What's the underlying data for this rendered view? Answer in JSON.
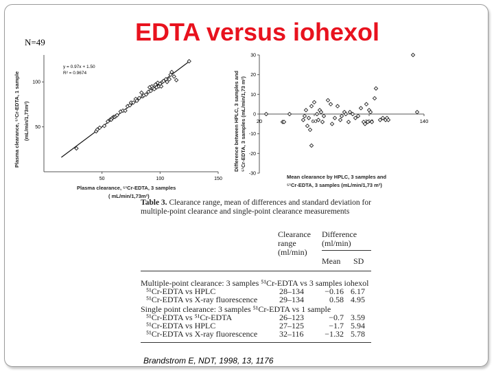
{
  "slide": {
    "n_label": "N=49",
    "title": "EDTA versus iohexol",
    "citation": "Brandstrom E, NDT, 1998, 13, 1176"
  },
  "chart_data": [
    {
      "type": "scatter",
      "equation": "y = 0.97x + 1.50",
      "r2": "R² = 0.9674",
      "ylabel_line1": "Plasma clearance, ⁵¹Cr-EDTA, 1 sample",
      "ylabel_line2": "(mL/min/1,73m²)",
      "xlabel_line1": "Plasma clearance, ⁵¹Cr-EDTA, 3 samples",
      "xlabel_line2": "( mL/min/1,73m²)",
      "xlim": [
        0,
        150
      ],
      "ylim": [
        0,
        130
      ],
      "xticks": [
        50,
        100,
        150
      ],
      "yticks": [
        50,
        100
      ],
      "fit": {
        "slope": 0.97,
        "intercept": 1.5,
        "x_start": 15,
        "x_end": 125
      },
      "x": [
        28,
        45,
        46,
        48,
        52,
        55,
        57,
        58,
        59,
        60,
        61,
        62,
        63,
        66,
        68,
        70,
        72,
        74,
        75,
        77,
        79,
        80,
        82,
        84,
        85,
        86,
        88,
        90,
        91,
        92,
        93,
        94,
        95,
        96,
        97,
        98,
        99,
        100,
        101,
        102,
        103,
        105,
        106,
        108,
        109,
        110,
        112,
        114,
        125
      ],
      "y": [
        26,
        45,
        47,
        49,
        51,
        56,
        58,
        58,
        60,
        61,
        61,
        62,
        63,
        67,
        68,
        68,
        73,
        74,
        77,
        77,
        81,
        79,
        82,
        88,
        84,
        85,
        86,
        89,
        94,
        90,
        95,
        93,
        92,
        97,
        94,
        99,
        95,
        98,
        95,
        100,
        101,
        103,
        100,
        103,
        108,
        111,
        106,
        102,
        123
      ]
    },
    {
      "type": "scatter",
      "ylabel_line1": "Difference between HPLC, 3 samples and",
      "ylabel_line2": "⁵¹Cr-EDTA, 3 samples (mL/min/1,73 m²)",
      "xlabel_line1": "Mean clearance by HPLC, 3 samples and",
      "xlabel_line2": "⁵¹Cr-EDTA, 3 samples (mL/min/1,73 m²)",
      "xlim": [
        20,
        140
      ],
      "ylim": [
        -30,
        30
      ],
      "xtick_labels": [
        "20",
        "60",
        "100",
        "140"
      ],
      "xtick_values": [
        20,
        60,
        100,
        140
      ],
      "yticks": [
        30,
        20,
        10,
        0,
        -10,
        -20,
        -30
      ],
      "x": [
        25,
        37,
        38,
        42,
        52,
        53,
        54,
        55,
        56,
        57,
        58,
        60,
        62,
        63,
        64,
        65,
        66,
        67,
        70,
        72,
        73,
        75,
        77,
        79,
        80,
        82,
        83,
        85,
        86,
        88,
        90,
        92,
        94,
        96,
        97,
        98,
        99,
        100,
        101,
        102,
        104,
        105,
        108,
        110,
        112,
        113,
        114,
        132,
        135
      ],
      "y": [
        0,
        -4,
        -4,
        0,
        -3,
        -1,
        2,
        -6,
        -2,
        -8,
        4,
        6,
        0,
        -3,
        2,
        1,
        -4,
        -1,
        7,
        5,
        -5,
        -2,
        4,
        -3,
        -1,
        1,
        0,
        -4,
        1,
        0,
        -2,
        -1,
        3,
        -4,
        -5,
        5,
        -4,
        2,
        1,
        -4,
        8,
        13,
        -3,
        -2,
        -3,
        -2,
        -3,
        30,
        1
      ],
      "dot_y_minus_16_x": 58
    }
  ],
  "table": {
    "caption_bold": "Table 3.",
    "caption_rest": " Clearance range, mean of differences and standard deviation for multiple-point clearance and single-point clearance measurements",
    "col_range_1": "Clearance",
    "col_range_2": "range",
    "col_range_3": "(ml/min)",
    "col_diff_1": "Difference",
    "col_diff_2": "(ml/min)",
    "col_mean": "Mean",
    "col_sd": "SD",
    "group1": "Multiple-point clearance: 3 samples ⁵¹Cr-EDTA vs 3 samples iohexol",
    "group2": "Single point clearance: 3 samples ⁵¹Cr-EDTA vs 1 sample",
    "rows": [
      {
        "label": "⁵¹Cr-EDTA vs HPLC",
        "range": "28–134",
        "mean": "−0.16",
        "sd": "6.17"
      },
      {
        "label": "⁵¹Cr-EDTA vs X-ray fluorescence",
        "range": "29–134",
        "mean": "0.58",
        "sd": "4.95"
      },
      {
        "label": "⁵¹Cr-EDTA vs ⁵¹Cr-EDTA",
        "range": "26–123",
        "mean": "−0.7",
        "sd": "3.59"
      },
      {
        "label": "⁵¹Cr-EDTA vs HPLC",
        "range": "27–125",
        "mean": "−1.7",
        "sd": "5.94"
      },
      {
        "label": "⁵¹Cr-EDTA vs X-ray fluorescence",
        "range": "32–116",
        "mean": "−1.32",
        "sd": "5.78"
      }
    ]
  }
}
